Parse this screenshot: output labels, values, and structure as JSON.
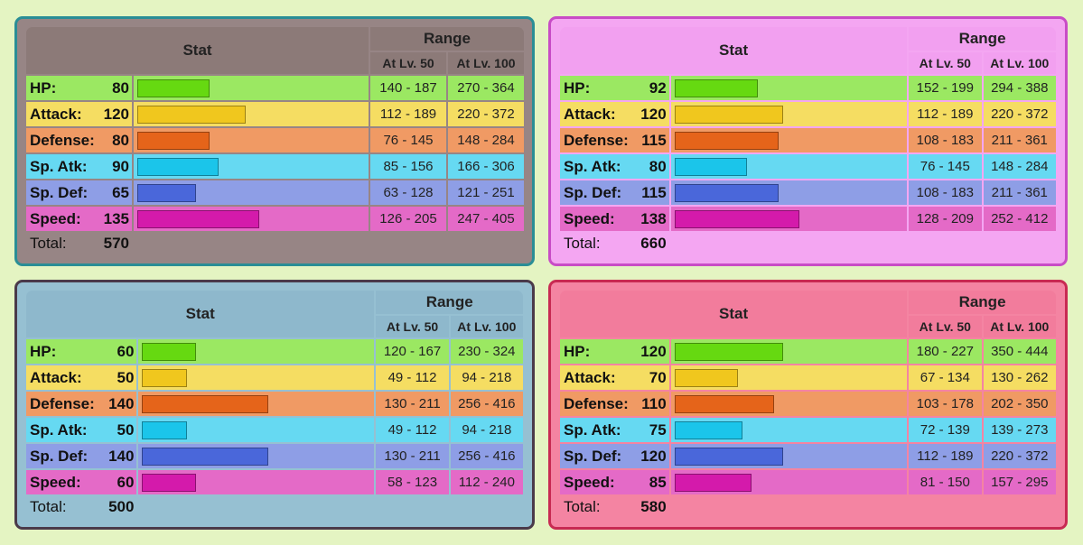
{
  "headers": {
    "stat": "Stat",
    "range": "Range",
    "lv50": "At Lv. 50",
    "lv100": "At Lv. 100",
    "total": "Total:"
  },
  "stat_labels": [
    "HP:",
    "Attack:",
    "Defense:",
    "Sp. Atk:",
    "Sp. Def:",
    "Speed:"
  ],
  "stat_max": 255,
  "panels": [
    {
      "border_color": "#2a8e96",
      "header_color": "#8c7a78",
      "body_color": "#978585",
      "stats": [
        {
          "value": "80",
          "lv50": "140 - 187",
          "lv100": "270 - 364"
        },
        {
          "value": "120",
          "lv50": "112 - 189",
          "lv100": "220 - 372"
        },
        {
          "value": "80",
          "lv50": "76 - 145",
          "lv100": "148 - 284"
        },
        {
          "value": "90",
          "lv50": "85 - 156",
          "lv100": "166 - 306"
        },
        {
          "value": "65",
          "lv50": "63 - 128",
          "lv100": "121 - 251"
        },
        {
          "value": "135",
          "lv50": "126 - 205",
          "lv100": "247 - 405"
        }
      ],
      "total": "570"
    },
    {
      "border_color": "#c84cc6",
      "header_color": "#f2a0f0",
      "body_color": "#f4a6f2",
      "stats": [
        {
          "value": "92",
          "lv50": "152 - 199",
          "lv100": "294 - 388"
        },
        {
          "value": "120",
          "lv50": "112 - 189",
          "lv100": "220 - 372"
        },
        {
          "value": "115",
          "lv50": "108 - 183",
          "lv100": "211 - 361"
        },
        {
          "value": "80",
          "lv50": "76 - 145",
          "lv100": "148 - 284"
        },
        {
          "value": "115",
          "lv50": "108 - 183",
          "lv100": "211 - 361"
        },
        {
          "value": "138",
          "lv50": "128 - 209",
          "lv100": "252 - 412"
        }
      ],
      "total": "660"
    },
    {
      "border_color": "#4a3a4a",
      "header_color": "#8eb8cc",
      "body_color": "#96c0d2",
      "stats": [
        {
          "value": "60",
          "lv50": "120 - 167",
          "lv100": "230 - 324"
        },
        {
          "value": "50",
          "lv50": "49 - 112",
          "lv100": "94 - 218"
        },
        {
          "value": "140",
          "lv50": "130 - 211",
          "lv100": "256 - 416"
        },
        {
          "value": "50",
          "lv50": "49 - 112",
          "lv100": "94 - 218"
        },
        {
          "value": "140",
          "lv50": "130 - 211",
          "lv100": "256 - 416"
        },
        {
          "value": "60",
          "lv50": "58 - 123",
          "lv100": "112 - 240"
        }
      ],
      "total": "500"
    },
    {
      "border_color": "#c82a52",
      "header_color": "#f27c9c",
      "body_color": "#f484a2",
      "stats": [
        {
          "value": "120",
          "lv50": "180 - 227",
          "lv100": "350 - 444"
        },
        {
          "value": "70",
          "lv50": "67 - 134",
          "lv100": "130 - 262"
        },
        {
          "value": "110",
          "lv50": "103 - 178",
          "lv100": "202 - 350"
        },
        {
          "value": "75",
          "lv50": "72 - 139",
          "lv100": "139 - 273"
        },
        {
          "value": "120",
          "lv50": "112 - 189",
          "lv100": "220 - 372"
        },
        {
          "value": "85",
          "lv50": "81 - 150",
          "lv100": "157 - 295"
        }
      ],
      "total": "580"
    }
  ]
}
